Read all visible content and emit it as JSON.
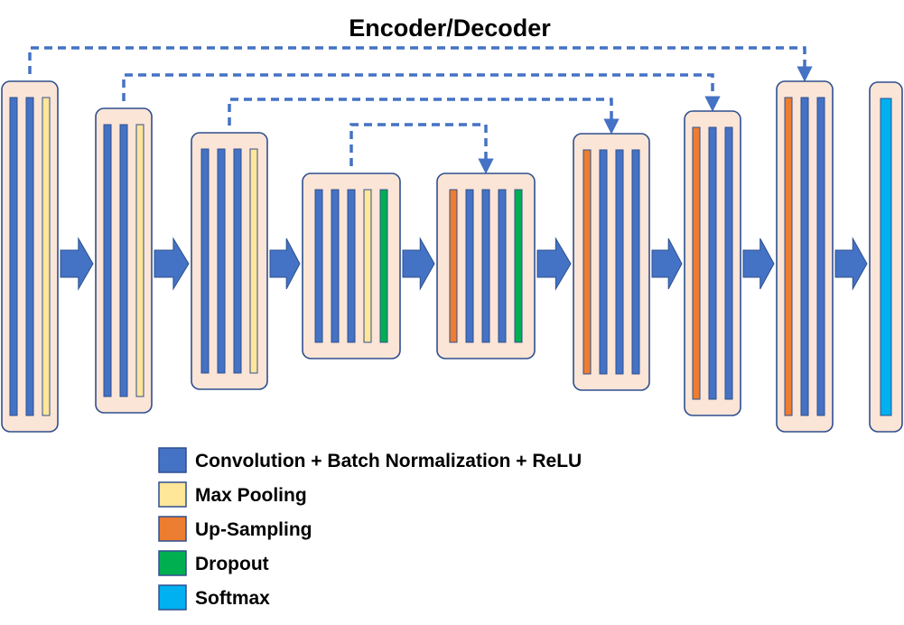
{
  "title": "Encoder/Decoder",
  "colors": {
    "block_fill": "#fbe5d6",
    "block_border": "#2f4f8f",
    "conv": "#4472c4",
    "pool": "#ffe699",
    "upsample": "#ed7d31",
    "dropout": "#00b050",
    "softmax": "#00b0f0",
    "arrow": "#4472c4"
  },
  "blocks": [
    {
      "id": "enc1",
      "layers": [
        "conv",
        "conv",
        "pool"
      ]
    },
    {
      "id": "enc2",
      "layers": [
        "conv",
        "conv",
        "pool"
      ]
    },
    {
      "id": "enc3",
      "layers": [
        "conv",
        "conv",
        "conv",
        "pool"
      ]
    },
    {
      "id": "bottleneck1",
      "layers": [
        "conv",
        "conv",
        "conv",
        "pool",
        "dropout"
      ]
    },
    {
      "id": "bottleneck2",
      "layers": [
        "upsample",
        "conv",
        "conv",
        "conv",
        "dropout"
      ]
    },
    {
      "id": "dec1",
      "layers": [
        "upsample",
        "conv",
        "conv",
        "conv"
      ]
    },
    {
      "id": "dec2",
      "layers": [
        "upsample",
        "conv",
        "conv"
      ]
    },
    {
      "id": "dec3",
      "layers": [
        "upsample",
        "conv",
        "conv"
      ]
    },
    {
      "id": "output",
      "layers": [
        "softmax"
      ]
    }
  ],
  "skip_connections": [
    {
      "from": "enc1",
      "to": "dec3"
    },
    {
      "from": "enc2",
      "to": "dec2"
    },
    {
      "from": "enc3",
      "to": "dec1"
    },
    {
      "from": "bottleneck1",
      "to": "bottleneck2"
    }
  ],
  "legend": [
    {
      "key": "conv",
      "label": "Convolution + Batch Normalization + ReLU"
    },
    {
      "key": "pool",
      "label": "Max Pooling"
    },
    {
      "key": "upsample",
      "label": "Up-Sampling"
    },
    {
      "key": "dropout",
      "label": "Dropout"
    },
    {
      "key": "softmax",
      "label": "Softmax"
    }
  ]
}
